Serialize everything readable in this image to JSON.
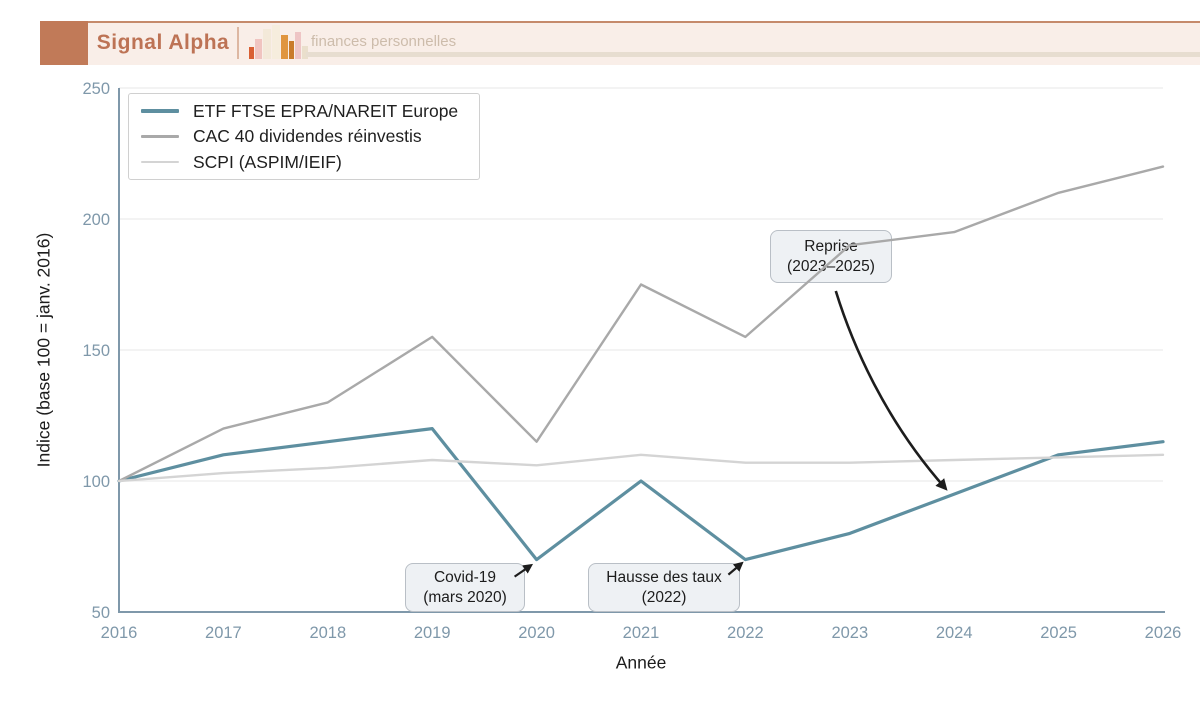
{
  "header": {
    "brand": "Signal Alpha",
    "tagline": "finances personnelles",
    "logo_icon": "bar-chart-icon",
    "colors": {
      "accent": "#c17a58",
      "band_bg": "#f9eee8",
      "brand_text": "#bd7355"
    }
  },
  "chart_data": {
    "type": "line",
    "title": "",
    "xlabel": "Année",
    "ylabel": "Indice (base 100 = janv. 2016)",
    "x": [
      2016,
      2017,
      2018,
      2019,
      2020,
      2021,
      2022,
      2023,
      2024,
      2025,
      2026
    ],
    "x_ticks": [
      "2016",
      "2017",
      "2018",
      "2019",
      "2020",
      "2021",
      "2022",
      "2023",
      "2024",
      "2025",
      "2026"
    ],
    "y_ticks": [
      "50",
      "100",
      "150",
      "200",
      "250"
    ],
    "y_tick_values": [
      50,
      100,
      150,
      200,
      250
    ],
    "xlim": [
      2016,
      2026
    ],
    "ylim": [
      50,
      250
    ],
    "grid": "horizontal",
    "legend_position": "upper-left",
    "series": [
      {
        "name": "ETF FTSE EPRA/NAREIT Europe",
        "color": "#5e8fa0",
        "values": [
          100,
          110,
          115,
          120,
          70,
          100,
          70,
          80,
          95,
          110,
          115
        ]
      },
      {
        "name": "CAC 40 dividendes réinvestis",
        "color": "#a9a9a9",
        "values": [
          100,
          120,
          130,
          155,
          115,
          175,
          155,
          190,
          195,
          210,
          220
        ]
      },
      {
        "name": "SCPI (ASPIM/IEIF)",
        "color": "#d4d4d4",
        "values": [
          100,
          103,
          105,
          108,
          106,
          110,
          107,
          107,
          108,
          109,
          110
        ]
      }
    ],
    "annotations": [
      {
        "lines": [
          "Covid-19",
          "(mars 2020)"
        ],
        "target_x": 2020,
        "target_y": 70
      },
      {
        "lines": [
          "Hausse des taux",
          "(2022)"
        ],
        "target_x": 2022,
        "target_y": 70
      },
      {
        "lines": [
          "Reprise",
          "(2023–2025)"
        ],
        "target_x": 2024,
        "target_y": 95
      }
    ]
  }
}
